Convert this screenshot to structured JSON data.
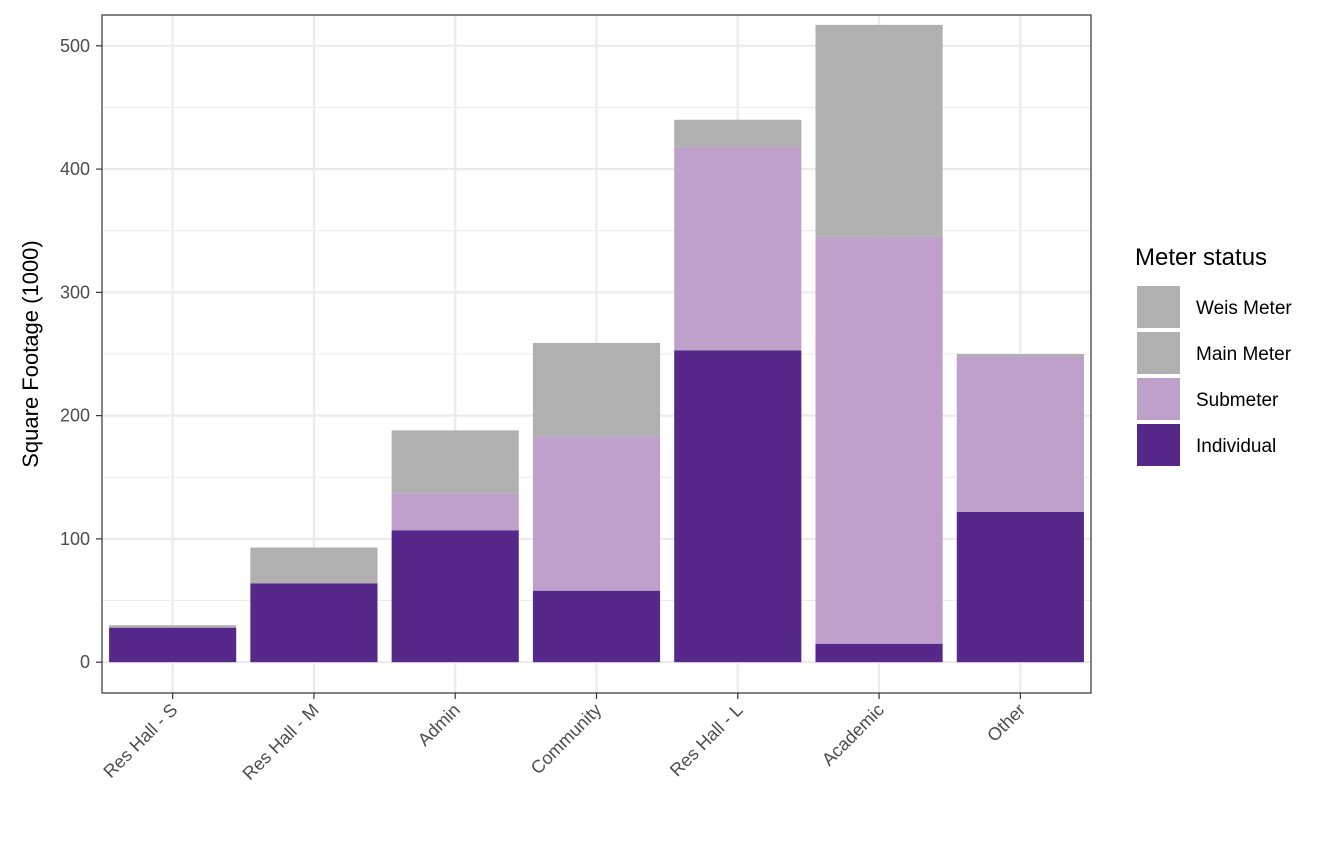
{
  "chart_data": {
    "type": "bar",
    "stacked": true,
    "categories": [
      "Res Hall - S",
      "Res Hall - M",
      "Admin",
      "Community",
      "Res Hall - L",
      "Academic",
      "Other"
    ],
    "series": [
      {
        "name": "Individual",
        "color": "#55288a",
        "values": [
          28,
          64,
          107,
          58,
          253,
          15,
          122
        ]
      },
      {
        "name": "Submeter",
        "color": "#bea0cb",
        "values": [
          0,
          0,
          30,
          125,
          165,
          330,
          126
        ]
      },
      {
        "name": "Main Meter",
        "color": "#b0b0b0",
        "values": [
          2,
          29,
          51,
          76,
          22,
          172,
          2
        ]
      },
      {
        "name": "Weis Meter",
        "color": "#b0b0b0",
        "values": [
          0,
          0,
          0,
          0,
          0,
          0,
          0
        ]
      }
    ],
    "xlabel": "",
    "ylabel": "Square Footage (1000)",
    "ylim": [
      -25,
      525
    ],
    "yticks": [
      0,
      100,
      200,
      300,
      400,
      500
    ],
    "grid": true,
    "legend": {
      "title": "Meter status",
      "placement": "right",
      "entries": [
        "Weis Meter",
        "Main Meter",
        "Submeter",
        "Individual"
      ]
    }
  }
}
